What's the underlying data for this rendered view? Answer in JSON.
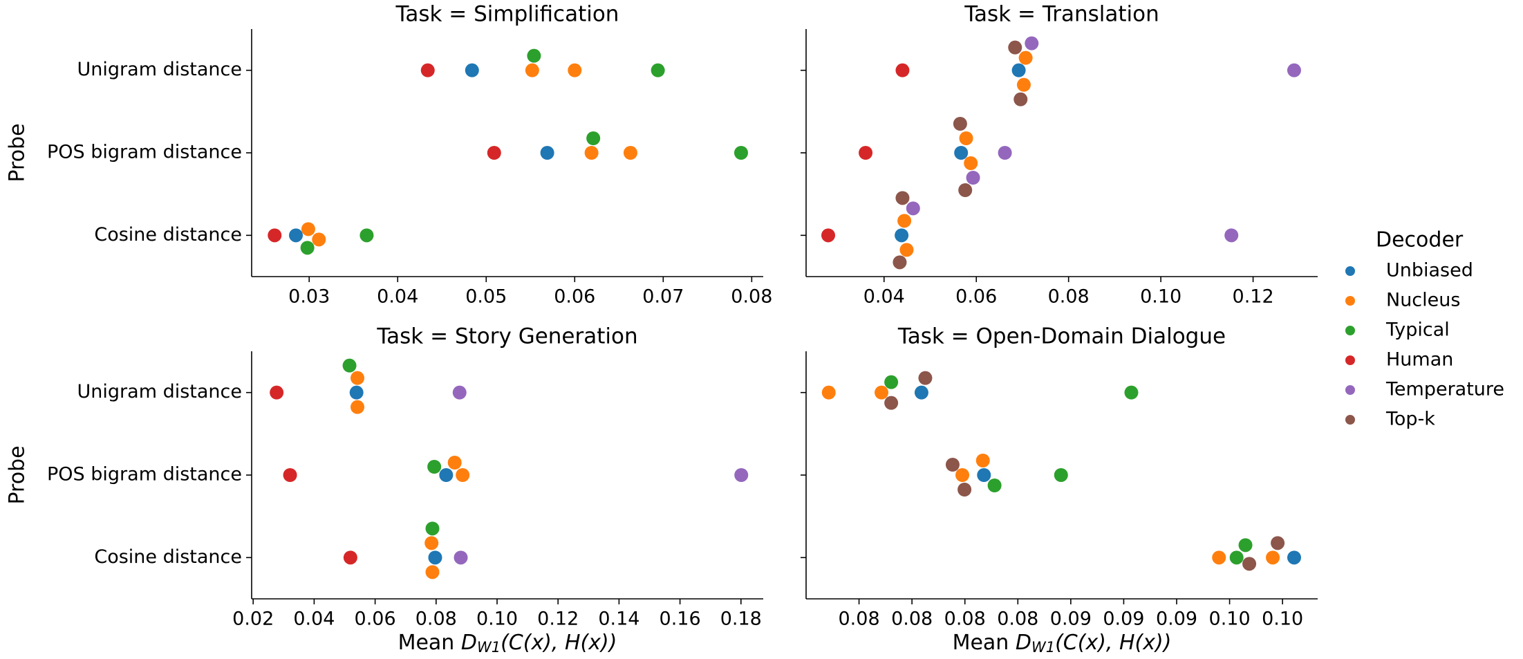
{
  "legend_title": "Decoder",
  "chart_data": [
    {
      "type": "strip",
      "title": "Task = Simplification",
      "categories": [
        "Unigram distance",
        "POS bigram distance",
        "Cosine distance"
      ],
      "y_label": "Probe",
      "xlim": [
        0.0235,
        0.0813
      ],
      "xticks": [
        0.03,
        0.04,
        0.05,
        0.06,
        0.07,
        0.08
      ],
      "series": [
        {
          "name": "Unbiased",
          "color": "#1f77b4",
          "values": [
            [
              0.0484
            ],
            [
              0.0569
            ],
            [
              0.0285
            ]
          ]
        },
        {
          "name": "Nucleus",
          "color": "#ff7f0e",
          "values": [
            [
              0.0552,
              0.06
            ],
            [
              0.0619,
              0.0663
            ],
            [
              0.0299,
              0.0311
            ]
          ]
        },
        {
          "name": "Typical",
          "color": "#2ca02c",
          "values": [
            [
              0.0554,
              0.0694
            ],
            [
              0.0621,
              0.0788
            ],
            [
              0.0298,
              0.0365
            ]
          ]
        },
        {
          "name": "Human",
          "color": "#d62728",
          "values": [
            [
              0.0434
            ],
            [
              0.0509
            ],
            [
              0.0261
            ]
          ]
        }
      ]
    },
    {
      "type": "strip",
      "title": "Task = Translation",
      "xlim": [
        0.0231,
        0.134
      ],
      "xticks": [
        0.04,
        0.06,
        0.08,
        {
          "value": 0.1,
          "label": "0.10"
        },
        0.12
      ],
      "series": [
        {
          "name": "Unbiased",
          "color": "#1f77b4",
          "values": [
            [
              0.0692
            ],
            [
              0.0567
            ],
            [
              0.0438
            ]
          ]
        },
        {
          "name": "Nucleus",
          "color": "#ff7f0e",
          "values": [
            [
              0.0707,
              0.0703
            ],
            [
              0.0578,
              0.0588
            ],
            [
              0.0444,
              0.0449
            ]
          ]
        },
        {
          "name": "Human",
          "color": "#d62728",
          "values": [
            [
              0.044
            ],
            [
              0.036
            ],
            [
              0.0279
            ]
          ]
        },
        {
          "name": "Temperature",
          "color": "#9467bd",
          "values": [
            [
              0.072,
              0.1289
            ],
            [
              0.0593,
              0.0662
            ],
            [
              0.0463,
              0.1153
            ]
          ]
        },
        {
          "name": "Top-k",
          "color": "#8c564b",
          "values": [
            [
              0.0684,
              0.0696
            ],
            [
              0.0565,
              0.0576
            ],
            [
              0.0434,
              0.044
            ]
          ]
        }
      ]
    },
    {
      "type": "strip",
      "title": "Task = Story Generation",
      "categories": [
        "Unigram distance",
        "POS bigram distance",
        "Cosine distance"
      ],
      "y_label": "Probe",
      "x_label": "Mean D_{W1}(C(x), H(x))",
      "xlim": [
        0.0195,
        0.1873
      ],
      "xticks": [
        0.02,
        0.04,
        0.06,
        0.08,
        {
          "value": 0.1,
          "label": "0.10"
        },
        0.12,
        0.14,
        0.16,
        0.18
      ],
      "series": [
        {
          "name": "Unbiased",
          "color": "#1f77b4",
          "values": [
            [
              0.0539
            ],
            [
              0.0833
            ],
            [
              0.0797
            ]
          ]
        },
        {
          "name": "Nucleus",
          "color": "#ff7f0e",
          "values": [
            [
              0.0542,
              0.0542
            ],
            [
              0.0887,
              0.0861
            ],
            [
              0.0785,
              0.0788
            ]
          ]
        },
        {
          "name": "Typical",
          "color": "#2ca02c",
          "values": [
            [
              0.0516
            ],
            [
              0.0794
            ],
            [
              0.0788
            ]
          ]
        },
        {
          "name": "Human",
          "color": "#d62728",
          "values": [
            [
              0.0277
            ],
            [
              0.0321
            ],
            [
              0.0519
            ]
          ]
        },
        {
          "name": "Temperature",
          "color": "#9467bd",
          "values": [
            [
              0.0877
            ],
            [
              0.1801
            ],
            [
              0.0881
            ]
          ]
        }
      ]
    },
    {
      "type": "strip",
      "title": "Task = Open-Domain Dialogue",
      "x_label": "Mean D_{W1}(C(x), H(x))",
      "xlim": [
        0.075,
        0.09916
      ],
      "xticks": [
        {
          "value": 0.0775,
          "label": "0.08"
        },
        {
          "value": 0.08,
          "label": "0.08"
        },
        {
          "value": 0.0825,
          "label": "0.08"
        },
        {
          "value": 0.085,
          "label": "0.08"
        },
        {
          "value": 0.0875,
          "label": "0.09"
        },
        {
          "value": 0.09,
          "label": "0.09"
        },
        {
          "value": 0.0925,
          "label": "0.09"
        },
        {
          "value": 0.095,
          "label": "0.10"
        },
        {
          "value": 0.0975,
          "label": "0.10"
        }
      ],
      "series": [
        {
          "name": "Unbiased",
          "color": "#1f77b4",
          "values": [
            [
              0.08045
            ],
            [
              0.0834
            ],
            [
              0.09805
            ]
          ]
        },
        {
          "name": "Nucleus",
          "color": "#ff7f0e",
          "values": [
            [
              0.07607,
              0.07856
            ],
            [
              0.08238,
              0.08335
            ],
            [
              0.0945,
              0.09704
            ]
          ]
        },
        {
          "name": "Typical",
          "color": "#2ca02c",
          "values": [
            [
              0.07902,
              0.09036
            ],
            [
              0.0839,
              0.08704
            ],
            [
              0.09533,
              0.09575
            ]
          ]
        },
        {
          "name": "Top-k",
          "color": "#8c564b",
          "values": [
            [
              0.08063,
              0.07902
            ],
            [
              0.08192,
              0.08248
            ],
            [
              0.09593,
              0.09727
            ]
          ]
        }
      ]
    }
  ]
}
